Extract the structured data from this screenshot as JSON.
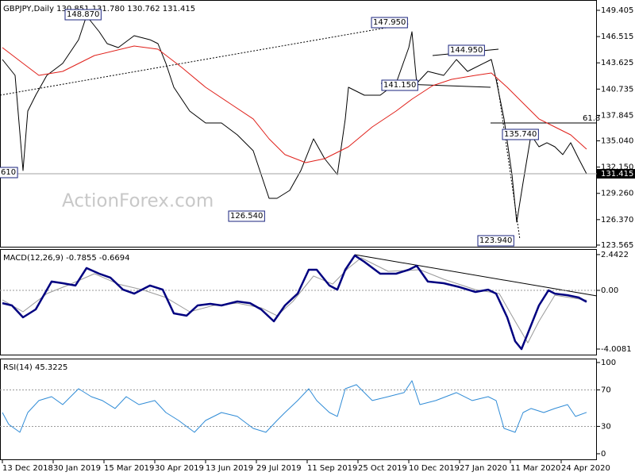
{
  "watermark": "ActionForex.com",
  "chart_data": [
    {
      "type": "line",
      "title": "GBPJPY,Daily  130.851 131.780 130.762 131.415",
      "xlim": [
        -1.5,
        374.5
      ],
      "ylim": [
        123.3,
        150.54
      ],
      "yticks": [
        149.405,
        146.515,
        143.625,
        140.735,
        137.845,
        {
          "value": 135.04,
          "label": "135.040"
        },
        {
          "value": 132.15,
          "label": "132.150"
        },
        {
          "value": 129.26,
          "label": "129.260"
        },
        {
          "value": 126.37,
          "label": "126.370"
        },
        123.565
      ],
      "current": {
        "value": 131.415,
        "label": "131.415"
      },
      "series": [
        {
          "color": "#000000",
          "width": 1,
          "x": [
            0,
            8,
            13,
            16,
            21,
            28,
            38,
            48,
            53,
            61,
            66,
            73,
            83,
            93,
            98,
            103,
            108,
            118,
            128,
            138,
            148,
            158,
            163,
            168,
            173,
            181,
            188,
            196,
            203,
            211,
            216,
            218,
            228,
            238,
            248,
            256,
            258,
            261,
            268,
            278,
            286,
            293,
            303,
            308,
            311,
            316,
            321,
            324,
            328,
            333,
            338,
            343,
            348,
            353,
            358,
            363,
            368
          ],
          "values": [
            143.99,
            142.25,
            131.77,
            138.32,
            140.06,
            142.25,
            143.56,
            146.17,
            148.79,
            147.05,
            145.74,
            145.3,
            146.61,
            146.17,
            145.74,
            143.56,
            140.94,
            138.32,
            137.01,
            137.01,
            135.7,
            133.95,
            131.33,
            128.71,
            128.71,
            129.59,
            131.77,
            135.26,
            133.08,
            131.33,
            137.45,
            140.94,
            140.06,
            140.06,
            141.37,
            145.3,
            147.05,
            141.37,
            142.68,
            142.25,
            143.99,
            142.68,
            143.56,
            143.99,
            141.81,
            137.45,
            131.33,
            126.1,
            130.46,
            135.7,
            134.39,
            134.83,
            134.39,
            133.52,
            134.83,
            133.08,
            131.415
          ]
        },
        {
          "color": "#e0201a",
          "width": 1,
          "x": [
            0,
            13,
            23,
            38,
            58,
            83,
            98,
            113,
            128,
            143,
            158,
            168,
            178,
            191,
            203,
            218,
            233,
            248,
            258,
            271,
            283,
            298,
            308,
            318,
            328,
            338,
            348,
            358,
            368
          ],
          "values": [
            145.3,
            143.56,
            142.25,
            142.68,
            144.43,
            145.48,
            145.13,
            143.12,
            140.94,
            139.19,
            137.45,
            135.26,
            133.52,
            132.64,
            133.08,
            134.39,
            136.57,
            138.32,
            139.63,
            141.11,
            141.81,
            142.25,
            142.51,
            140.94,
            139.19,
            137.45,
            136.57,
            135.7,
            134.13
          ]
        }
      ],
      "annotations": [
        "148.870",
        "147.950",
        "144.950",
        "141.150",
        "135.740",
        "126.540",
        "123.940",
        "610",
        "61.8"
      ]
    },
    {
      "type": "line",
      "title": "MACD(12,26,9) -0.7855 -0.6694",
      "xlim": [
        -1.5,
        374.5
      ],
      "ylim": [
        -4.442,
        2.817
      ],
      "yticks": [
        2.4422,
        {
          "value": 0,
          "label": "0.00"
        },
        -4.0081
      ],
      "levels": [
        0
      ],
      "series": [
        {
          "color": "#9a9a9a",
          "width": 1,
          "x": [
            0,
            13,
            28,
            43,
            58,
            73,
            88,
            103,
            118,
            133,
            148,
            163,
            173,
            183,
            196,
            208,
            218,
            226,
            243,
            263,
            278,
            298,
            313,
            323,
            331,
            338,
            348,
            368
          ],
          "values": [
            -0.65,
            -1.46,
            -0.22,
            0.43,
            1.14,
            0.43,
            0.05,
            -0.49,
            -1.46,
            -1.03,
            -0.87,
            -1.19,
            -1.73,
            -0.76,
            0.98,
            0.43,
            1.52,
            2.22,
            1.3,
            1.41,
            0.76,
            0.05,
            -0.22,
            -2.11,
            -3.58,
            -2.11,
            -0.33,
            -0.6694
          ]
        },
        {
          "color": "#000080",
          "width": 2.5,
          "x": [
            0,
            6,
            13,
            21,
            31,
            38,
            46,
            53,
            61,
            68,
            76,
            83,
            93,
            101,
            108,
            116,
            123,
            131,
            138,
            148,
            156,
            163,
            171,
            178,
            186,
            193,
            198,
            206,
            211,
            216,
            222,
            228,
            238,
            248,
            256,
            261,
            268,
            278,
            288,
            298,
            306,
            311,
            318,
            323,
            327,
            331,
            338,
            344,
            348,
            356,
            363,
            368
          ],
          "values": [
            -0.87,
            -1.03,
            -1.84,
            -1.3,
            0.6,
            0.49,
            0.33,
            1.52,
            1.14,
            0.87,
            0.05,
            -0.22,
            0.33,
            0.05,
            -1.57,
            -1.73,
            -1.03,
            -0.92,
            -1.03,
            -0.76,
            -0.87,
            -1.3,
            -2.11,
            -1.03,
            -0.22,
            1.41,
            1.41,
            0.33,
            0.05,
            1.41,
            2.38,
            1.95,
            1.14,
            1.14,
            1.41,
            1.68,
            0.6,
            0.49,
            0.22,
            -0.11,
            0.05,
            -0.22,
            -1.84,
            -3.47,
            -4.01,
            -2.93,
            -1.03,
            0,
            -0.22,
            -0.33,
            -0.49,
            -0.7855
          ]
        }
      ]
    },
    {
      "type": "line",
      "title": "RSI(14) 45.3225",
      "xlim": [
        -1.5,
        374.5
      ],
      "ylim": [
        -7,
        104.3
      ],
      "yticks": [
        100,
        70,
        30,
        0
      ],
      "levels": [
        70,
        30
      ],
      "xticks": [
        {
          "value": 0,
          "label": "13 Dec 2018"
        },
        {
          "value": 32,
          "label": "30 Jan 2019"
        },
        {
          "value": 64,
          "label": "15 Mar 2019"
        },
        {
          "value": 96,
          "label": "30 Apr 2019"
        },
        {
          "value": 128,
          "label": "13 Jun 2019"
        },
        {
          "value": 160,
          "label": "29 Jul 2019"
        },
        {
          "value": 192,
          "label": "11 Sep 2019"
        },
        {
          "value": 224,
          "label": "25 Oct 2019"
        },
        {
          "value": 256,
          "label": "10 Dec 2019"
        },
        {
          "value": 288,
          "label": "27 Jan 2020"
        },
        {
          "value": 320,
          "label": "11 Mar 2020"
        },
        {
          "value": 352,
          "label": "24 Apr 2020"
        }
      ],
      "series": [
        {
          "color": "#2f8bd6",
          "width": 1,
          "x": [
            0,
            4,
            11,
            16,
            23,
            31,
            38,
            48,
            56,
            63,
            71,
            78,
            86,
            96,
            103,
            111,
            121,
            128,
            138,
            148,
            158,
            166,
            173,
            178,
            186,
            193,
            198,
            206,
            211,
            216,
            223,
            233,
            243,
            253,
            258,
            263,
            273,
            286,
            296,
            306,
            311,
            316,
            323,
            328,
            333,
            341,
            348,
            356,
            361,
            368
          ],
          "values": [
            45.2,
            32.2,
            23.5,
            45.2,
            58.3,
            62.6,
            53.9,
            71.3,
            62.6,
            58.3,
            49.6,
            62.6,
            53.9,
            58.3,
            45.2,
            36.5,
            23.5,
            36.5,
            45.2,
            40.9,
            27.8,
            23.5,
            36.5,
            45.2,
            58.3,
            71.3,
            58.3,
            45.2,
            40.9,
            71.3,
            75.7,
            58.3,
            62.6,
            67,
            80,
            53.9,
            58.3,
            67,
            58.3,
            62.6,
            58.3,
            27.8,
            23.5,
            45.2,
            49.6,
            45.2,
            49.6,
            53.9,
            40.9,
            45.3225
          ]
        }
      ]
    }
  ]
}
